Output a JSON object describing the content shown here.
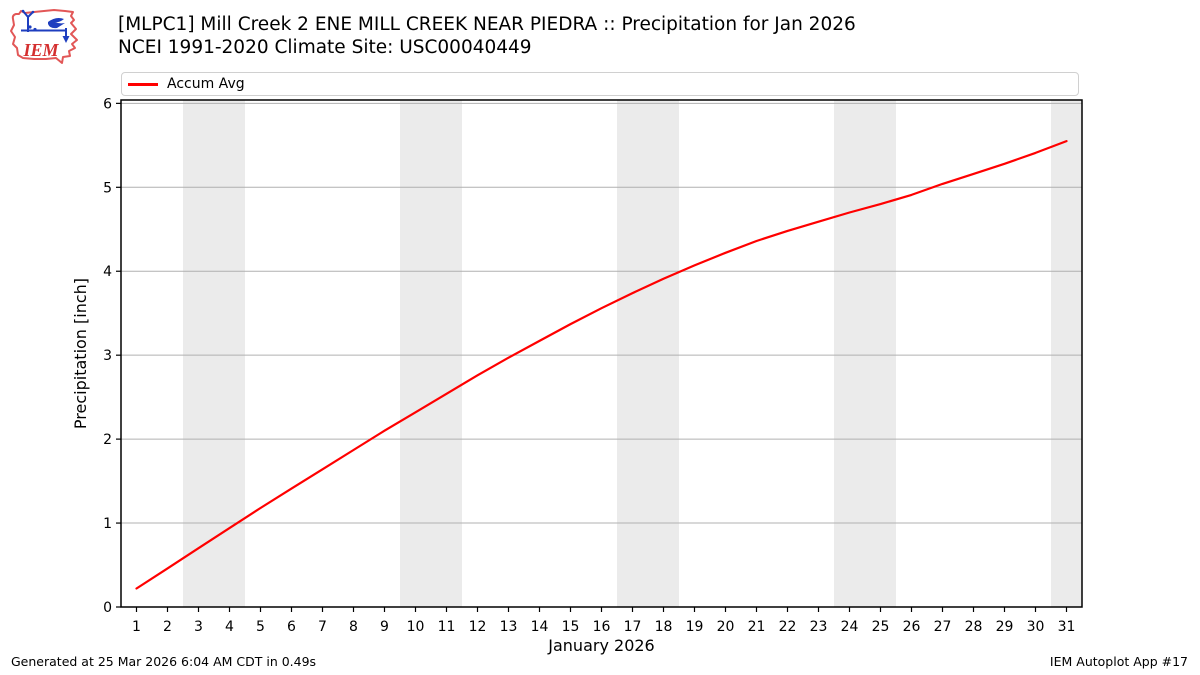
{
  "header": {
    "logo_text": "IEM",
    "title_line1": "[MLPC1] Mill Creek 2 ENE MILL CREEK NEAR PIEDRA :: Precipitation for Jan 2026",
    "title_line2": "NCEI 1991-2020 Climate Site: USC00040449"
  },
  "legend": {
    "items": [
      {
        "label": "Accum Avg",
        "color": "#ff0000"
      }
    ]
  },
  "chart_data": {
    "type": "line",
    "title": "[MLPC1] Mill Creek 2 ENE MILL CREEK NEAR PIEDRA :: Precipitation for Jan 2026",
    "subtitle": "NCEI 1991-2020 Climate Site: USC00040449",
    "xlabel": "January 2026",
    "ylabel": "Precipitation [inch]",
    "x": [
      1,
      2,
      3,
      4,
      5,
      6,
      7,
      8,
      9,
      10,
      11,
      12,
      13,
      14,
      15,
      16,
      17,
      18,
      19,
      20,
      21,
      22,
      23,
      24,
      25,
      26,
      27,
      28,
      29,
      30,
      31
    ],
    "series": [
      {
        "name": "Accum Avg",
        "color": "#ff0000",
        "values": [
          0.22,
          0.46,
          0.7,
          0.94,
          1.18,
          1.41,
          1.64,
          1.87,
          2.1,
          2.32,
          2.54,
          2.76,
          2.97,
          3.17,
          3.37,
          3.56,
          3.74,
          3.91,
          4.07,
          4.22,
          4.36,
          4.48,
          4.59,
          4.7,
          4.8,
          4.91,
          5.04,
          5.16,
          5.28,
          5.41,
          5.55
        ]
      }
    ],
    "xlim": [
      0.5,
      31.5
    ],
    "ylim": [
      0,
      6.04
    ],
    "yticks": [
      0,
      1,
      2,
      3,
      4,
      5,
      6
    ],
    "xticks": [
      1,
      2,
      3,
      4,
      5,
      6,
      7,
      8,
      9,
      10,
      11,
      12,
      13,
      14,
      15,
      16,
      17,
      18,
      19,
      20,
      21,
      22,
      23,
      24,
      25,
      26,
      27,
      28,
      29,
      30,
      31
    ],
    "grid": "horizontal",
    "grid_color": "#b0b0b0",
    "weekend_bands": [
      [
        2.5,
        4.5
      ],
      [
        9.5,
        11.5
      ],
      [
        16.5,
        18.5
      ],
      [
        23.5,
        25.5
      ],
      [
        30.5,
        31.5
      ]
    ],
    "band_color": "#ebebeb",
    "frame_color": "#000000",
    "legend_position": "top"
  },
  "footer": {
    "left": "Generated at 25 Mar 2026 6:04 AM CDT in 0.49s",
    "right": "IEM Autoplot App #17"
  }
}
